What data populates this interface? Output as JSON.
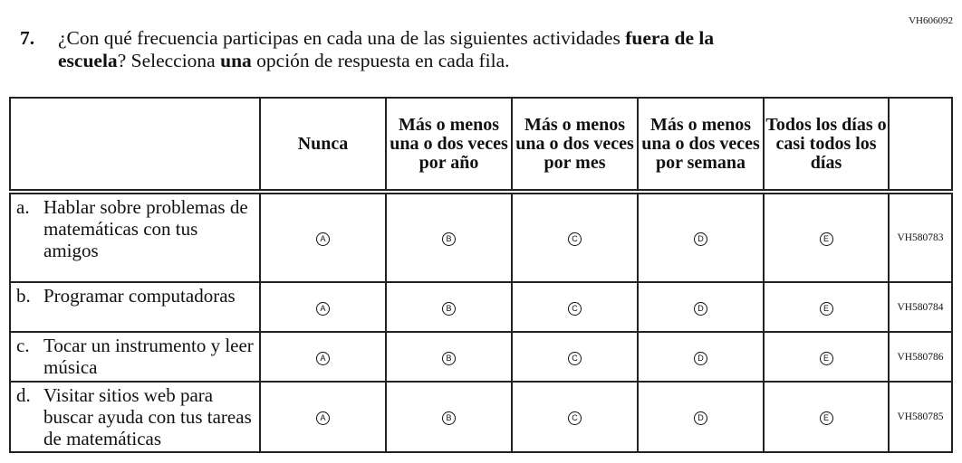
{
  "item_code": "VH606092",
  "question": {
    "number": "7.",
    "text_1": "¿Con qué frecuencia participas en cada una de las siguientes actividades ",
    "bold_1": "fuera de la",
    "bold_2": "escuela",
    "text_2": "? Selecciona ",
    "bold_3": "una",
    "text_3": " opción de respuesta en cada fila."
  },
  "columns": [
    "Nunca",
    "Más o menos una o dos veces por año",
    "Más o menos una o dos veces por mes",
    "Más o menos una o dos veces por semana",
    "Todos los días o casi todos los días"
  ],
  "options": [
    "A",
    "B",
    "C",
    "D",
    "E"
  ],
  "rows": [
    {
      "letter": "a.",
      "text": "Hablar sobre problemas de matemáticas con tus amigos",
      "id": "VH580783"
    },
    {
      "letter": "b.",
      "text": "Programar computadoras",
      "id": "VH580784"
    },
    {
      "letter": "c.",
      "text": "Tocar un instrumento y leer música",
      "id": "VH580786"
    },
    {
      "letter": "d.",
      "text": "Visitar sitios web para buscar ayuda con tus tareas de matemáticas",
      "id": "VH580785"
    }
  ]
}
